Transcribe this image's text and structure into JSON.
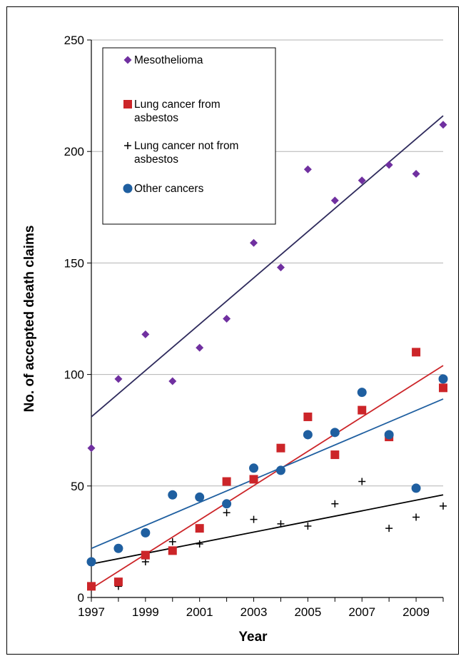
{
  "chart_data": {
    "type": "scatter",
    "title": "",
    "xlabel": "Year",
    "ylabel": "No. of accepted death claims",
    "xlim": [
      1997,
      2010
    ],
    "ylim": [
      0,
      250
    ],
    "x_ticks": [
      "1997",
      "1999",
      "2001",
      "2003",
      "2005",
      "2007",
      "2009"
    ],
    "y_ticks": [
      "0",
      "50",
      "100",
      "150",
      "200",
      "250"
    ],
    "grid": "horizontal",
    "legend_position": "top-left",
    "x": [
      1997,
      1998,
      1999,
      2000,
      2001,
      2002,
      2003,
      2004,
      2005,
      2006,
      2007,
      2008,
      2009,
      2010
    ],
    "series": [
      {
        "name": "Mesothelioma",
        "marker": "diamond",
        "color": "#7030a0",
        "trend_color": "#2e2a5c",
        "values": [
          67,
          98,
          118,
          97,
          112,
          125,
          159,
          148,
          192,
          178,
          187,
          194,
          190,
          212
        ],
        "trend": [
          81,
          216
        ]
      },
      {
        "name": "Lung cancer from asbestos",
        "marker": "square",
        "color": "#cc2529",
        "trend_color": "#cc2529",
        "values": [
          5,
          7,
          19,
          21,
          31,
          52,
          53,
          67,
          81,
          64,
          84,
          72,
          110,
          94
        ],
        "trend": [
          4,
          104
        ]
      },
      {
        "name": "Lung cancer not from asbestos",
        "marker": "plus",
        "color": "#000000",
        "trend_color": "#000000",
        "values": [
          null,
          5,
          16,
          25,
          24,
          38,
          35,
          33,
          32,
          42,
          52,
          31,
          36,
          41
        ],
        "trend": [
          15,
          46
        ]
      },
      {
        "name": "Other cancers",
        "marker": "circle",
        "color": "#1f5fa0",
        "trend_color": "#1f5fa0",
        "values": [
          16,
          22,
          29,
          46,
          45,
          42,
          58,
          57,
          73,
          74,
          92,
          73,
          49,
          98
        ],
        "trend": [
          22,
          89
        ]
      }
    ]
  }
}
